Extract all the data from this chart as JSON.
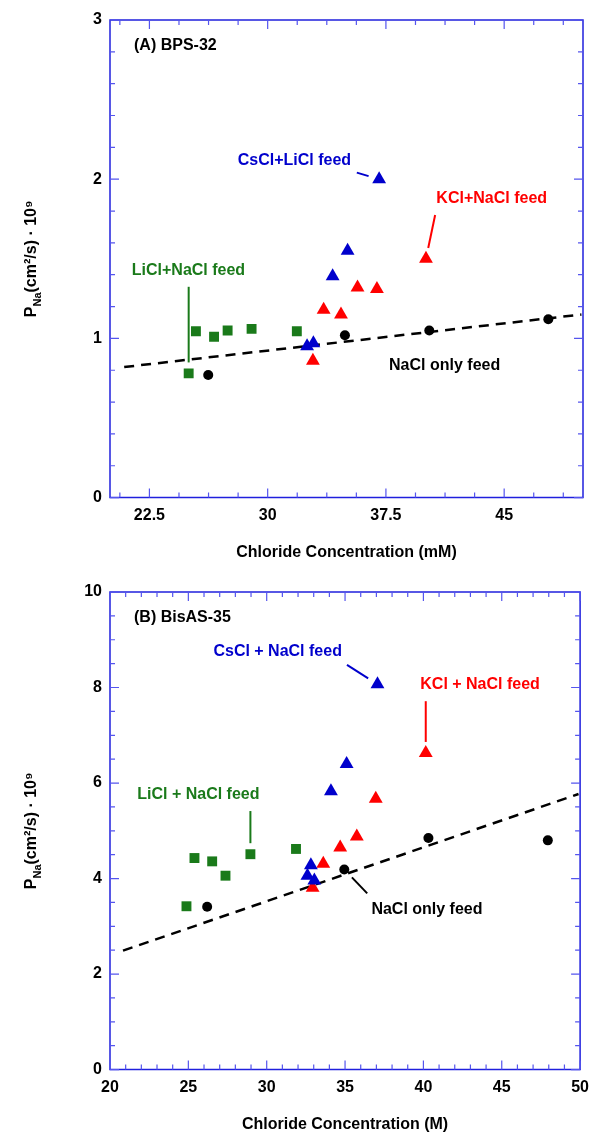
{
  "chart_data": [
    {
      "type": "scatter",
      "title": "(A) BPS-32",
      "xlabel": "Chloride Concentration (mM)",
      "ylabel": "P$_{Na}$(cm²/s) · 10⁹",
      "xlim": [
        20,
        50
      ],
      "ylim": [
        0,
        3
      ],
      "xticks": [
        {
          "value": 20.625,
          "label": null
        },
        22.5,
        {
          "value": 24.375,
          "label": null
        },
        {
          "value": 26.25,
          "label": null
        },
        {
          "value": 28.125,
          "label": null
        },
        30,
        {
          "value": 31.875,
          "label": null
        },
        {
          "value": 33.75,
          "label": null
        },
        {
          "value": 35.625,
          "label": null
        },
        37.5,
        {
          "value": 39.375,
          "label": null
        },
        {
          "value": 41.25,
          "label": null
        },
        {
          "value": 43.125,
          "label": null
        },
        45,
        {
          "value": 46.875,
          "label": null
        },
        {
          "value": 48.75,
          "label": null
        }
      ],
      "yticks": [
        0,
        {
          "value": 0.2,
          "label": null
        },
        {
          "value": 0.4,
          "label": null
        },
        {
          "value": 0.6,
          "label": null
        },
        {
          "value": 0.8,
          "label": null
        },
        1,
        {
          "value": 1.2,
          "label": null
        },
        {
          "value": 1.4,
          "label": null
        },
        {
          "value": 1.6,
          "label": null
        },
        {
          "value": 1.8,
          "label": null
        },
        2,
        {
          "value": 2.2,
          "label": null
        },
        {
          "value": 2.4,
          "label": null
        },
        {
          "value": 2.6,
          "label": null
        },
        {
          "value": 2.8,
          "label": null
        },
        3
      ],
      "grid": false,
      "legend": false,
      "series": [
        {
          "name": "LiCl+NaCl feed",
          "color": "#1a7a1a",
          "marker": "square",
          "x": [
            24.99,
            25.45,
            26.6,
            27.46,
            28.98,
            31.85
          ],
          "values": [
            0.78,
            1.045,
            1.01,
            1.05,
            1.06,
            1.045
          ]
        },
        {
          "name": "CsCl+LiCl feed",
          "color": "#0000cc",
          "marker": "triangle",
          "x": [
            37.07,
            35.07,
            34.12,
            32.9,
            32.5
          ],
          "values": [
            2.0,
            1.55,
            1.39,
            0.97,
            0.95
          ]
        },
        {
          "name": "KCl+NaCl feed",
          "color": "#ff0000",
          "marker": "triangle",
          "x": [
            40.04,
            35.7,
            36.93,
            33.55,
            34.65,
            32.87
          ],
          "values": [
            1.5,
            1.32,
            1.31,
            1.18,
            1.15,
            0.86
          ]
        },
        {
          "name": "NaCl only feed",
          "color": "#000000",
          "marker": "circle",
          "x": [
            26.23,
            34.9,
            40.25,
            47.8
          ],
          "values": [
            0.77,
            1.02,
            1.05,
            1.12
          ]
        },
        {
          "type": "line",
          "color": "#000000",
          "marker": "none",
          "line_style": "dashed",
          "x": [
            20.9,
            49.9
          ],
          "values": [
            0.82,
            1.15
          ]
        }
      ]
    },
    {
      "type": "scatter",
      "title": "(B) BisAS-35",
      "xlabel": "Chloride Concentration (M)",
      "ylabel": "P$_{Na}$(cm²/s) · 10⁹",
      "xlim": [
        20,
        50
      ],
      "ylim": [
        0,
        10
      ],
      "xticks": [
        20,
        {
          "value": 21,
          "label": null
        },
        {
          "value": 22,
          "label": null
        },
        {
          "value": 23,
          "label": null
        },
        {
          "value": 24,
          "label": null
        },
        25,
        {
          "value": 26,
          "label": null
        },
        {
          "value": 27,
          "label": null
        },
        {
          "value": 28,
          "label": null
        },
        {
          "value": 29,
          "label": null
        },
        30,
        {
          "value": 31,
          "label": null
        },
        {
          "value": 32,
          "label": null
        },
        {
          "value": 33,
          "label": null
        },
        {
          "value": 34,
          "label": null
        },
        35,
        {
          "value": 36,
          "label": null
        },
        {
          "value": 37,
          "label": null
        },
        {
          "value": 38,
          "label": null
        },
        {
          "value": 39,
          "label": null
        },
        40,
        {
          "value": 41,
          "label": null
        },
        {
          "value": 42,
          "label": null
        },
        {
          "value": 43,
          "label": null
        },
        {
          "value": 44,
          "label": null
        },
        45,
        {
          "value": 46,
          "label": null
        },
        {
          "value": 47,
          "label": null
        },
        {
          "value": 48,
          "label": null
        },
        {
          "value": 49,
          "label": null
        },
        50
      ],
      "yticks": [
        0,
        {
          "value": 0.5,
          "label": null
        },
        {
          "value": 1,
          "label": null
        },
        {
          "value": 1.5,
          "label": null
        },
        2,
        {
          "value": 2.5,
          "label": null
        },
        {
          "value": 3,
          "label": null
        },
        {
          "value": 3.5,
          "label": null
        },
        4,
        {
          "value": 4.5,
          "label": null
        },
        {
          "value": 5,
          "label": null
        },
        {
          "value": 5.5,
          "label": null
        },
        6,
        {
          "value": 6.5,
          "label": null
        },
        {
          "value": 7,
          "label": null
        },
        {
          "value": 7.5,
          "label": null
        },
        8,
        {
          "value": 8.5,
          "label": null
        },
        {
          "value": 9,
          "label": null
        },
        {
          "value": 9.5,
          "label": null
        },
        10
      ],
      "grid": false,
      "legend": false,
      "series": [
        {
          "name": "LiCl + NaCl feed",
          "color": "#1a7a1a",
          "marker": "square",
          "x": [
            24.88,
            25.39,
            26.52,
            27.37,
            28.96,
            31.87
          ],
          "values": [
            3.42,
            4.43,
            4.36,
            4.06,
            4.51,
            4.62
          ]
        },
        {
          "name": "CsCl + NaCl feed",
          "color": "#0000cc",
          "marker": "triangle",
          "x": [
            37.07,
            35.1,
            34.1,
            32.82,
            32.6,
            33.04
          ],
          "values": [
            8.07,
            6.4,
            5.83,
            4.28,
            4.06,
            3.96
          ]
        },
        {
          "name": "KCl + NaCl feed",
          "color": "#ff0000",
          "marker": "triangle",
          "x": [
            40.15,
            36.96,
            35.75,
            34.69,
            33.61,
            32.93
          ],
          "values": [
            6.63,
            5.67,
            4.88,
            4.65,
            4.31,
            3.81
          ]
        },
        {
          "name": "NaCl only feed",
          "color": "#000000",
          "marker": "circle",
          "x": [
            26.2,
            34.95,
            40.32,
            47.94
          ],
          "values": [
            3.41,
            4.19,
            4.85,
            4.8
          ]
        },
        {
          "type": "line",
          "color": "#000000",
          "marker": "none",
          "line_style": "dashed",
          "x": [
            20.83,
            49.9
          ],
          "values": [
            2.49,
            5.77
          ]
        }
      ]
    }
  ]
}
